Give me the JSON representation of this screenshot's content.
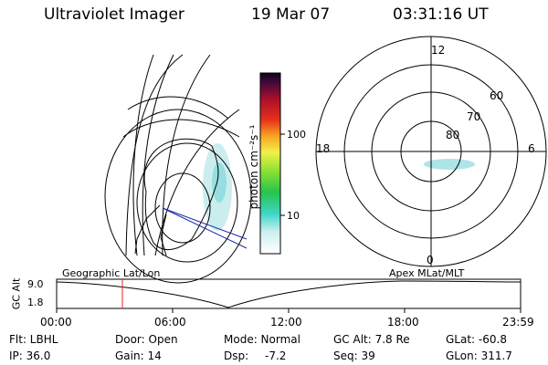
{
  "header": {
    "title": "Ultraviolet Imager",
    "date": "19 Mar 07",
    "time": "03:31:16 UT"
  },
  "colorbar": {
    "unit_label": "photon cm⁻²s⁻¹",
    "ticks": [
      "100",
      "10"
    ]
  },
  "polar_plot": {
    "mlt_labels": {
      "top": "12",
      "left": "18",
      "right": "6",
      "bottom": "0"
    },
    "lat_labels": [
      "60",
      "70",
      "80"
    ]
  },
  "timeline": {
    "left_label": "Geographic Lat/Lon",
    "right_label": "Apex MLat/MLT",
    "axis_title": "GC Alt",
    "y_ticks": [
      "9.0",
      "1.8"
    ],
    "x_ticks": [
      "00:00",
      "06:00",
      "12:00",
      "18:00",
      "23:59"
    ]
  },
  "info": {
    "flt": "Flt: LBHL",
    "ip": "IP: 36.0",
    "door": "Door: Open",
    "gain": "Gain: 14",
    "mode": "Mode: Normal",
    "dsp_label": "Dsp:",
    "dsp_value": "-7.2",
    "gcalt": "GC Alt: 7.8 Re",
    "seq": "Seq: 39",
    "glat": "GLat: -60.8",
    "glon": "GLon: 311.7"
  }
}
